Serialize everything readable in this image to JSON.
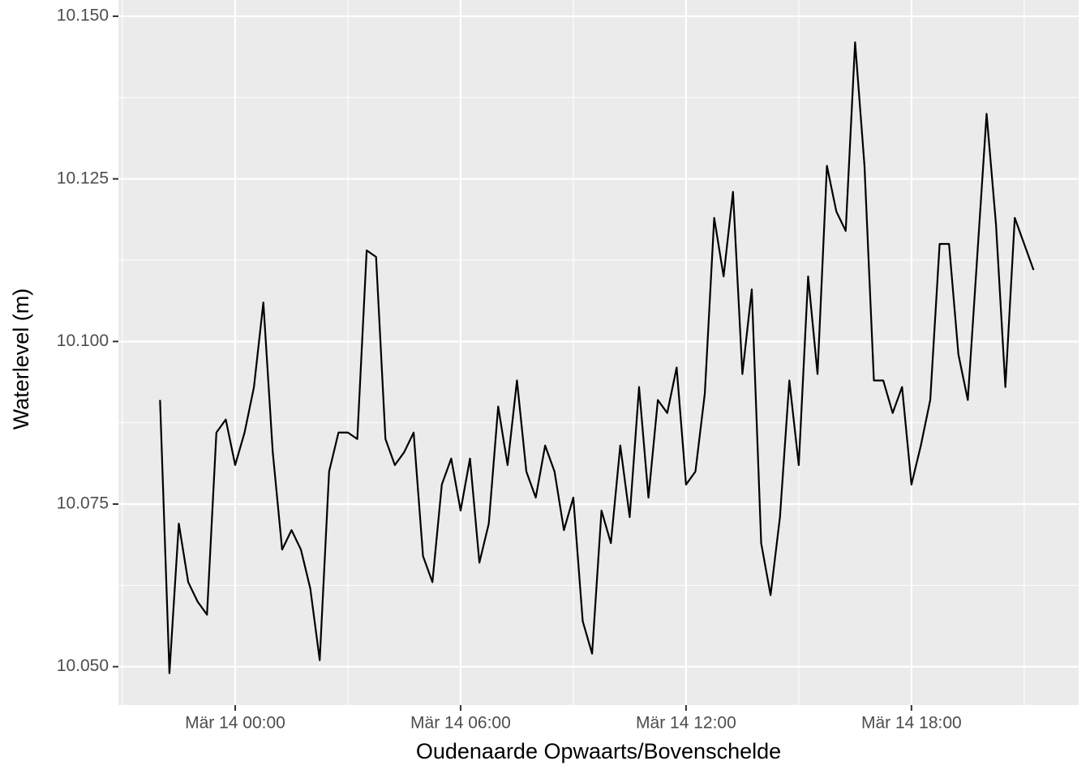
{
  "chart_data": {
    "type": "line",
    "x_label": "Oudenaarde Opwaarts/Bovenschelde",
    "y_label": "Waterlevel (m)",
    "x": [
      -2,
      -1.75,
      -1.5,
      -1.25,
      -1,
      -0.75,
      -0.5,
      -0.25,
      0,
      0.25,
      0.5,
      0.75,
      1,
      1.25,
      1.5,
      1.75,
      2,
      2.25,
      2.5,
      2.75,
      3,
      3.25,
      3.5,
      3.75,
      4,
      4.25,
      4.5,
      4.75,
      5,
      5.25,
      5.5,
      5.75,
      6,
      6.25,
      6.5,
      6.75,
      7,
      7.25,
      7.5,
      7.75,
      8,
      8.25,
      8.5,
      8.75,
      9,
      9.25,
      9.5,
      9.75,
      10,
      10.25,
      10.5,
      10.75,
      11,
      11.25,
      11.5,
      11.75,
      12,
      12.25,
      12.5,
      12.75,
      13,
      13.25,
      13.5,
      13.75,
      14,
      14.25,
      14.5,
      14.75,
      15,
      15.25,
      15.5,
      15.75,
      16,
      16.25,
      16.5,
      16.75,
      17,
      17.25,
      17.5,
      17.75,
      18,
      18.25,
      18.5,
      18.75,
      19,
      19.25,
      19.5,
      19.75,
      20,
      20.25,
      20.5,
      20.75,
      21,
      21.25
    ],
    "series": [
      {
        "name": "Waterlevel",
        "color": "#000000",
        "values": [
          10.091,
          10.049,
          10.072,
          10.063,
          10.06,
          10.058,
          10.086,
          10.088,
          10.081,
          10.086,
          10.093,
          10.106,
          10.083,
          10.068,
          10.071,
          10.068,
          10.062,
          10.051,
          10.08,
          10.086,
          10.086,
          10.085,
          10.114,
          10.113,
          10.085,
          10.081,
          10.083,
          10.086,
          10.067,
          10.063,
          10.078,
          10.082,
          10.074,
          10.082,
          10.066,
          10.072,
          10.09,
          10.081,
          10.094,
          10.08,
          10.076,
          10.084,
          10.08,
          10.071,
          10.076,
          10.057,
          10.052,
          10.074,
          10.069,
          10.084,
          10.073,
          10.093,
          10.076,
          10.091,
          10.089,
          10.096,
          10.078,
          10.08,
          10.092,
          10.119,
          10.11,
          10.123,
          10.095,
          10.108,
          10.069,
          10.061,
          10.073,
          10.094,
          10.081,
          10.11,
          10.095,
          10.127,
          10.12,
          10.117,
          10.146,
          10.127,
          10.094,
          10.094,
          10.089,
          10.093,
          10.078,
          10.084,
          10.091,
          10.115,
          10.115,
          10.098,
          10.091,
          10.113,
          10.135,
          10.118,
          10.093,
          10.119,
          10.115,
          10.111
        ]
      }
    ],
    "xlim": [
      -3.108,
      22.45
    ],
    "ylim": [
      10.0441,
      10.1525
    ],
    "xticks": [
      {
        "value": 0,
        "label": "Mär 14 00:00"
      },
      {
        "value": 6,
        "label": "Mär 14 06:00"
      },
      {
        "value": 12,
        "label": "Mär 14 12:00"
      },
      {
        "value": 18,
        "label": "Mär 14 18:00"
      }
    ],
    "yticks": [
      {
        "value": 10.05,
        "label": "10.050"
      },
      {
        "value": 10.075,
        "label": "10.075"
      },
      {
        "value": 10.1,
        "label": "10.100"
      },
      {
        "value": 10.125,
        "label": "10.125"
      },
      {
        "value": 10.15,
        "label": "10.150"
      }
    ],
    "minor_xticks": [
      -3,
      3,
      9,
      15,
      21
    ],
    "minor_yticks": [
      10.0625,
      10.0875,
      10.1125,
      10.1375
    ],
    "grid": true,
    "panel_color": "#ebebeb"
  }
}
